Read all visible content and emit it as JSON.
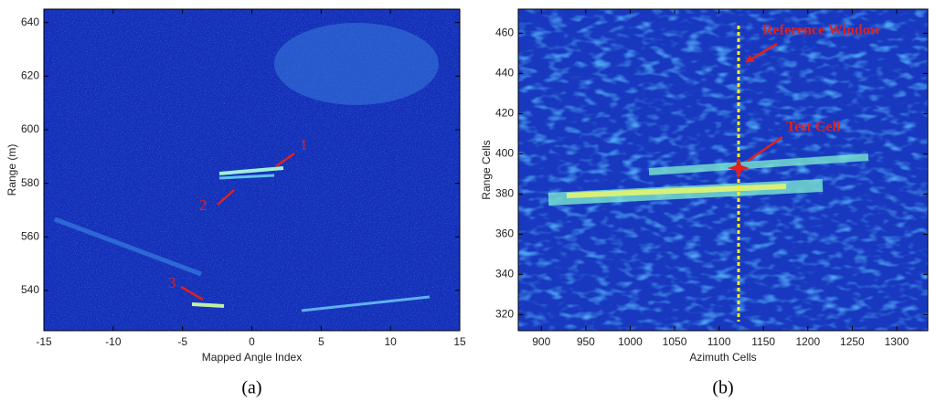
{
  "chart_data": [
    {
      "type": "heatmap",
      "xlabel": "Mapped Angle Index",
      "ylabel": "Range (m)",
      "xlim": [
        -15,
        15
      ],
      "ylim": [
        525,
        645
      ],
      "xticks": [
        -15,
        -10,
        -5,
        0,
        5,
        10,
        15
      ],
      "yticks": [
        540,
        560,
        580,
        600,
        620,
        640
      ],
      "annotations": [
        "1",
        "2",
        "3"
      ],
      "panel_label": "(a)"
    },
    {
      "type": "heatmap",
      "xlabel": "Azimuth Cells",
      "ylabel": "Range Cells",
      "xlim": [
        874,
        1335
      ],
      "ylim": [
        312,
        472
      ],
      "xticks": [
        900,
        950,
        1000,
        1050,
        1100,
        1150,
        1200,
        1250,
        1300
      ],
      "yticks": [
        320,
        340,
        360,
        380,
        400,
        420,
        440,
        460
      ],
      "annotations": [
        "Reference Window",
        "Test Cell"
      ],
      "panel_label": "(b)"
    }
  ]
}
